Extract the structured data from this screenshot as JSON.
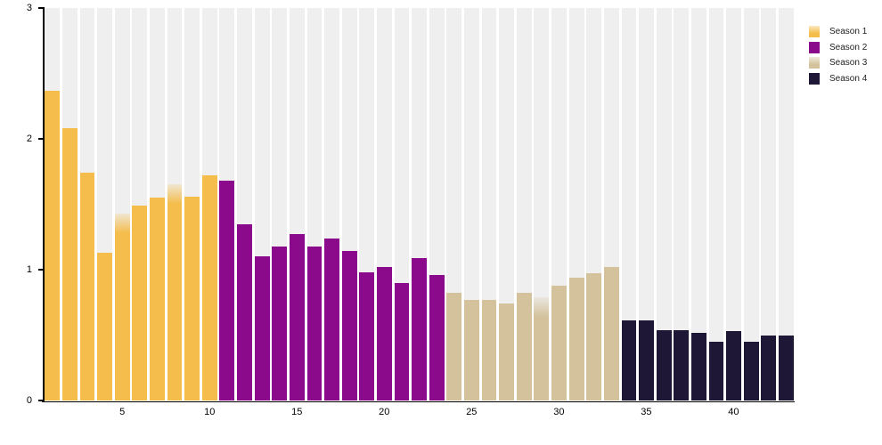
{
  "chart_data": {
    "type": "bar",
    "title": "",
    "xlabel": "",
    "ylabel": "",
    "ylim": [
      0,
      3
    ],
    "y_tick_values": [
      0,
      1,
      2,
      3
    ],
    "x_tick_values": [
      5,
      10,
      15,
      20,
      25,
      30,
      35,
      40
    ],
    "x_range": [
      1,
      43
    ],
    "grid": "vertical-background-bands",
    "band_color": "#efefef",
    "axis_color": "#000000",
    "legend_position": "top-right",
    "fade_top_bars": [
      5,
      8,
      29
    ],
    "series": [
      {
        "name": "Season 1",
        "color": "#f4bd4c",
        "legend_fade": true,
        "episodes": [
          1,
          2,
          3,
          4,
          5,
          6,
          7,
          8,
          9,
          10
        ],
        "values": [
          2.37,
          2.08,
          1.74,
          1.13,
          1.43,
          1.49,
          1.55,
          1.65,
          1.56,
          1.72
        ]
      },
      {
        "name": "Season 2",
        "color": "#8b0a8b",
        "legend_fade": false,
        "episodes": [
          11,
          12,
          13,
          14,
          15,
          16,
          17,
          18,
          19,
          20,
          21,
          22,
          23
        ],
        "values": [
          1.68,
          1.35,
          1.1,
          1.18,
          1.27,
          1.18,
          1.24,
          1.14,
          0.98,
          1.02,
          0.9,
          1.09,
          0.96
        ]
      },
      {
        "name": "Season 3",
        "color": "#d3c29b",
        "legend_fade": true,
        "episodes": [
          24,
          25,
          26,
          27,
          28,
          29,
          30,
          31,
          32,
          33
        ],
        "values": [
          0.82,
          0.77,
          0.77,
          0.74,
          0.82,
          0.79,
          0.88,
          0.94,
          0.97,
          1.02
        ]
      },
      {
        "name": "Season 4",
        "color": "#1e1836",
        "legend_fade": false,
        "episodes": [
          34,
          35,
          36,
          37,
          38,
          39,
          40,
          41,
          42,
          43
        ],
        "values": [
          0.61,
          0.61,
          0.54,
          0.54,
          0.52,
          0.45,
          0.53,
          0.45,
          0.5,
          0.5
        ]
      }
    ]
  },
  "axes": {
    "y_tick_labels": [
      "0",
      "1",
      "2",
      "3"
    ],
    "x_tick_labels": [
      "5",
      "10",
      "15",
      "20",
      "25",
      "30",
      "35",
      "40"
    ]
  },
  "legend": {
    "items": [
      {
        "label": "Season 1",
        "color": "#f4bd4c",
        "fade": true
      },
      {
        "label": "Season 2",
        "color": "#8b0a8b",
        "fade": false
      },
      {
        "label": "Season 3",
        "color": "#d3c29b",
        "fade": true
      },
      {
        "label": "Season 4",
        "color": "#1e1836",
        "fade": false
      }
    ]
  }
}
